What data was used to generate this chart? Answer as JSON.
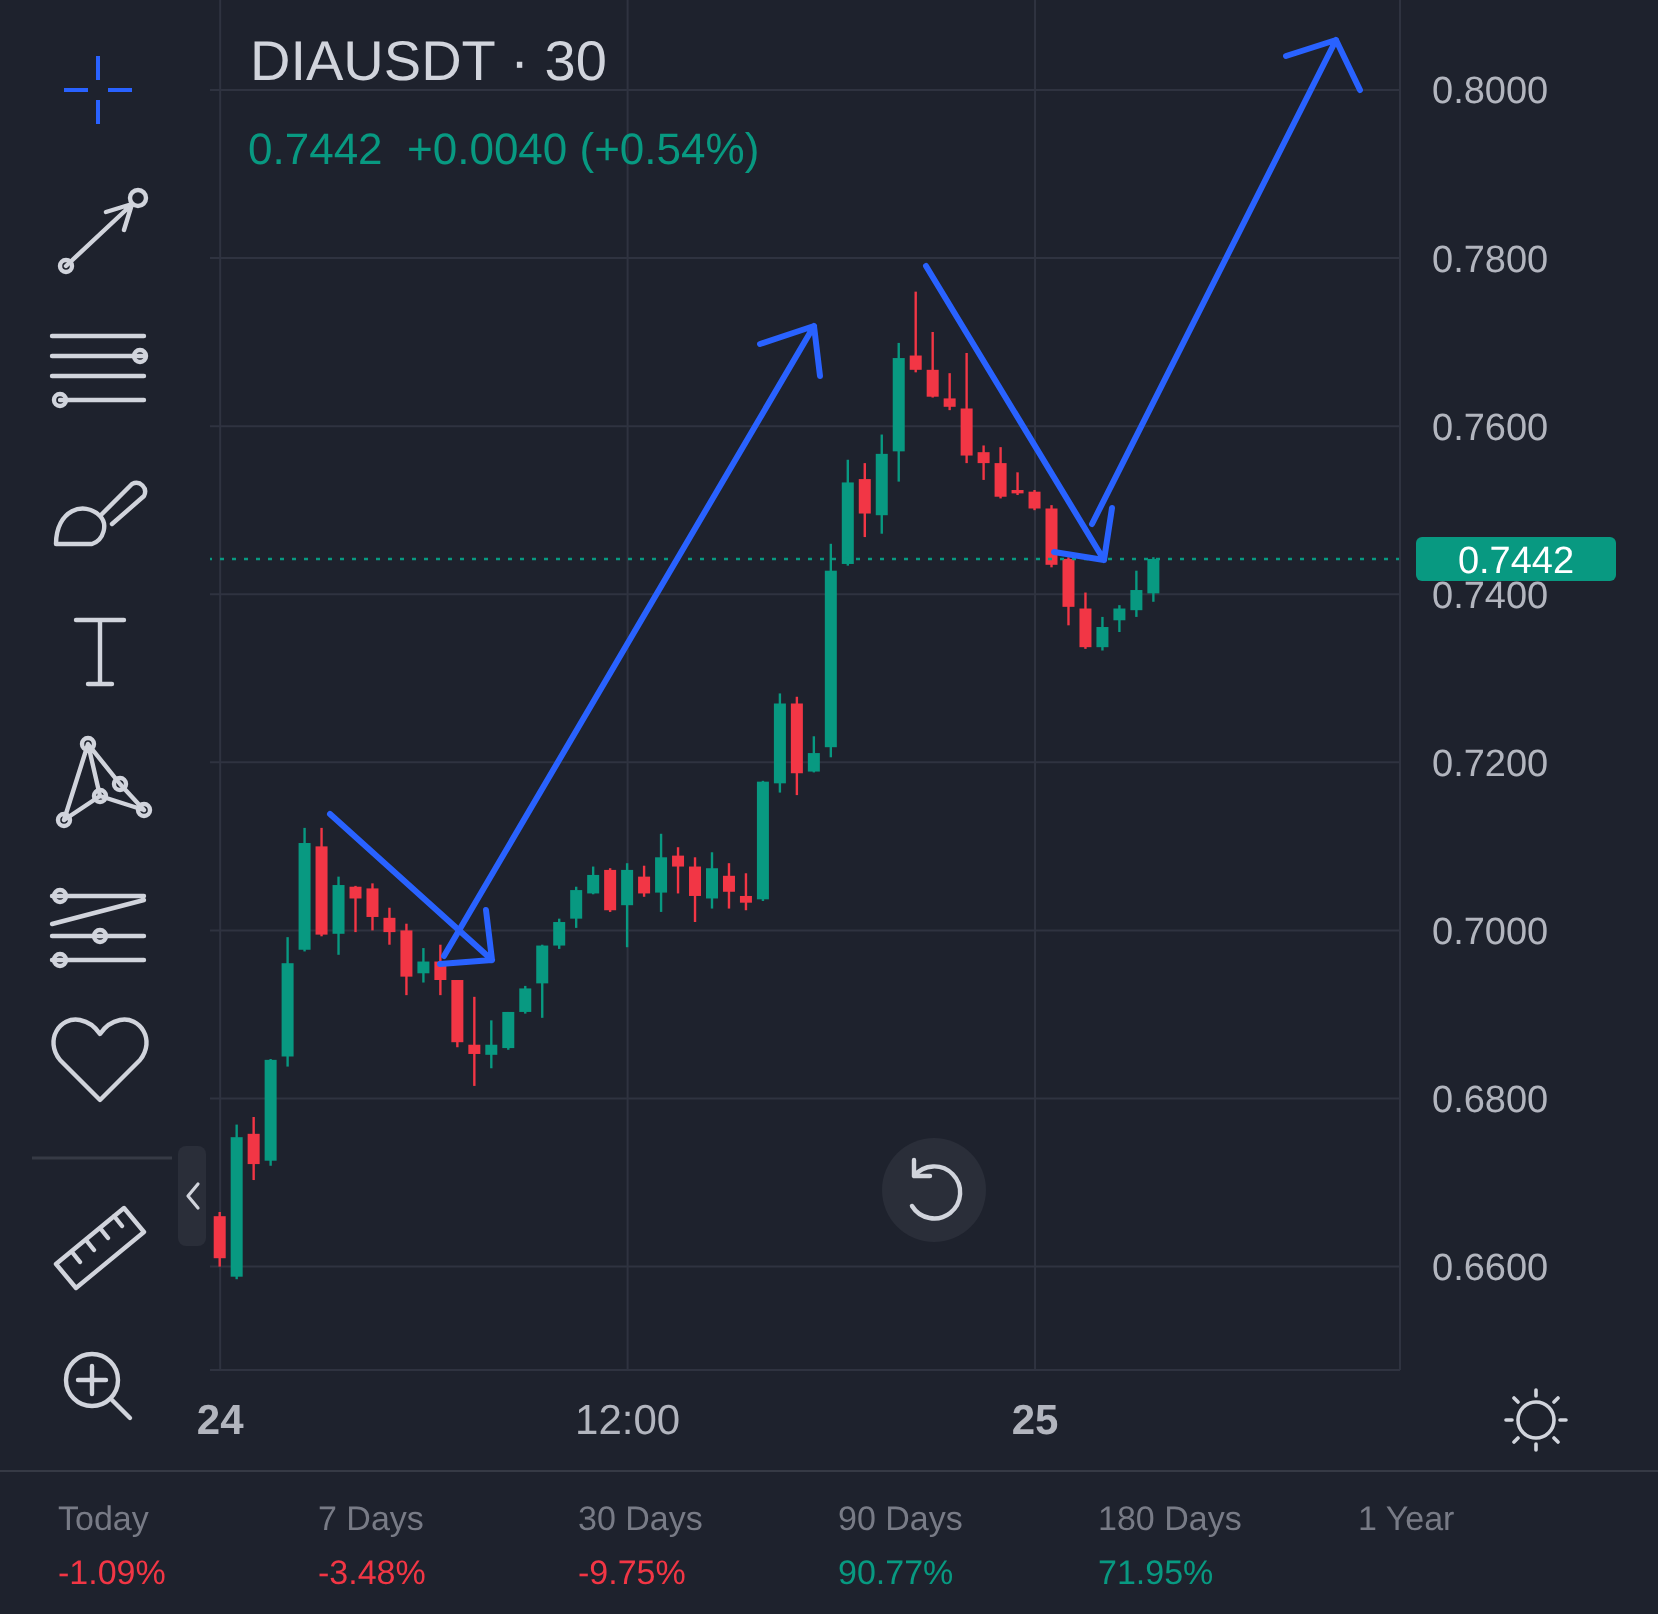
{
  "chart_data": {
    "type": "candlestick",
    "title": "DIAUSDT · 30",
    "subtitle": "0.7442  +0.0040 (+0.54%)",
    "categories": [
      "24",
      null,
      null,
      null,
      null,
      null,
      null,
      null,
      null,
      null,
      null,
      null,
      null,
      null,
      null,
      null,
      null,
      null,
      null,
      null,
      null,
      null,
      null,
      null,
      "12:00",
      null,
      null,
      null,
      null,
      null,
      null,
      null,
      null,
      null,
      null,
      null,
      null,
      null,
      null,
      null,
      null,
      null,
      null,
      null,
      null,
      null,
      null,
      null,
      "25",
      null,
      null,
      null,
      null,
      null,
      null,
      null,
      null,
      null,
      null,
      null,
      null,
      null,
      null,
      null,
      null,
      null,
      null,
      null,
      null,
      null
    ],
    "ohlc": [
      [
        0.666,
        0.6665,
        0.66,
        0.661
      ],
      [
        0.6588,
        0.6769,
        0.6585,
        0.6754
      ],
      [
        0.6758,
        0.6778,
        0.6703,
        0.6722
      ],
      [
        0.6726,
        0.6847,
        0.672,
        0.6846
      ],
      [
        0.685,
        0.6992,
        0.6838,
        0.6961
      ],
      [
        0.6977,
        0.7122,
        0.6975,
        0.7104
      ],
      [
        0.71,
        0.7122,
        0.6993,
        0.6995
      ],
      [
        0.6996,
        0.7064,
        0.6971,
        0.7054
      ],
      [
        0.7052,
        0.7053,
        0.6998,
        0.7038
      ],
      [
        0.705,
        0.7056,
        0.7,
        0.7016
      ],
      [
        0.7015,
        0.7027,
        0.6983,
        0.6998
      ],
      [
        0.7,
        0.7008,
        0.6923,
        0.6945
      ],
      [
        0.6949,
        0.6979,
        0.6938,
        0.6963
      ],
      [
        0.6963,
        0.6983,
        0.6923,
        0.6941
      ],
      [
        0.6941,
        0.6941,
        0.6861,
        0.6867
      ],
      [
        0.6864,
        0.6921,
        0.6815,
        0.6853
      ],
      [
        0.6852,
        0.6893,
        0.6836,
        0.6864
      ],
      [
        0.686,
        0.6903,
        0.6858,
        0.6903
      ],
      [
        0.6903,
        0.6934,
        0.6901,
        0.6931
      ],
      [
        0.6937,
        0.6983,
        0.6896,
        0.6982
      ],
      [
        0.6982,
        0.7014,
        0.6978,
        0.701
      ],
      [
        0.7014,
        0.7052,
        0.7003,
        0.7048
      ],
      [
        0.7044,
        0.7076,
        0.7043,
        0.7066
      ],
      [
        0.7072,
        0.7074,
        0.7022,
        0.7024
      ],
      [
        0.703,
        0.708,
        0.698,
        0.7072
      ],
      [
        0.7064,
        0.7077,
        0.704,
        0.7044
      ],
      [
        0.7045,
        0.7115,
        0.7022,
        0.7087
      ],
      [
        0.7089,
        0.7099,
        0.7044,
        0.7076
      ],
      [
        0.7076,
        0.7087,
        0.701,
        0.7041
      ],
      [
        0.7038,
        0.7093,
        0.7026,
        0.7074
      ],
      [
        0.7065,
        0.708,
        0.7026,
        0.7046
      ],
      [
        0.7041,
        0.7068,
        0.7024,
        0.7033
      ],
      [
        0.7037,
        0.7178,
        0.7035,
        0.7177
      ],
      [
        0.7175,
        0.7282,
        0.7164,
        0.727
      ],
      [
        0.727,
        0.7278,
        0.7161,
        0.7187
      ],
      [
        0.7189,
        0.7231,
        0.7188,
        0.7211
      ],
      [
        0.7218,
        0.746,
        0.7206,
        0.7428
      ],
      [
        0.7436,
        0.756,
        0.7434,
        0.7533
      ],
      [
        0.7537,
        0.7556,
        0.7468,
        0.7496
      ],
      [
        0.7494,
        0.759,
        0.7472,
        0.7567
      ],
      [
        0.757,
        0.7699,
        0.7534,
        0.7681
      ],
      [
        0.7684,
        0.776,
        0.7664,
        0.7667
      ],
      [
        0.7667,
        0.7712,
        0.7634,
        0.7635
      ],
      [
        0.7633,
        0.7663,
        0.7619,
        0.7623
      ],
      [
        0.7621,
        0.7687,
        0.7556,
        0.7565
      ],
      [
        0.7569,
        0.7577,
        0.7536,
        0.7556
      ],
      [
        0.7556,
        0.7575,
        0.7514,
        0.7516
      ],
      [
        0.7524,
        0.7545,
        0.7518,
        0.752
      ],
      [
        0.7522,
        0.7524,
        0.75,
        0.7502
      ],
      [
        0.7502,
        0.7506,
        0.7432,
        0.7435
      ],
      [
        0.7442,
        0.7444,
        0.7363,
        0.7385
      ],
      [
        0.7383,
        0.7402,
        0.7335,
        0.7337
      ],
      [
        0.7337,
        0.7373,
        0.7333,
        0.7361
      ],
      [
        0.7369,
        0.7387,
        0.7355,
        0.7383
      ],
      [
        0.7381,
        0.7428,
        0.7373,
        0.7405
      ],
      [
        0.7401,
        0.7444,
        0.7391,
        0.7442
      ],
      null,
      null,
      null,
      null,
      null,
      null,
      null,
      null,
      null,
      null,
      null,
      null,
      null,
      null
    ],
    "colors": [
      "#f23645",
      "#089981",
      "#f23645",
      "#089981",
      "#089981",
      "#089981",
      "#f23645",
      "#089981",
      "#f23645",
      "#f23645",
      "#f23645",
      "#f23645",
      "#089981",
      "#f23645",
      "#f23645",
      "#f23645",
      "#089981",
      "#089981",
      "#089981",
      "#089981",
      "#089981",
      "#089981",
      "#089981",
      "#f23645",
      "#089981",
      "#f23645",
      "#089981",
      "#f23645",
      "#f23645",
      "#089981",
      "#f23645",
      "#f23645",
      "#089981",
      "#089981",
      "#f23645",
      "#089981",
      "#089981",
      "#089981",
      "#f23645",
      "#089981",
      "#089981",
      "#f23645",
      "#f23645",
      "#f23645",
      "#f23645",
      "#f23645",
      "#f23645",
      "#f23645",
      "#f23645",
      "#f23645",
      "#f23645",
      "#f23645",
      "#089981",
      "#089981",
      "#089981",
      "#089981",
      null,
      null,
      null,
      null,
      null,
      null,
      null,
      null,
      null,
      null,
      null,
      null,
      null,
      null
    ],
    "ylim": [
      0.6477,
      0.8107
    ],
    "yticks": [
      {
        "value": 0.66,
        "label": "0.6600"
      },
      {
        "value": 0.68,
        "label": "0.6800"
      },
      {
        "value": 0.7,
        "label": "0.7000"
      },
      {
        "value": 0.72,
        "label": "0.7200"
      },
      {
        "value": 0.74,
        "label": "0.7400"
      },
      {
        "value": 0.76,
        "label": "0.7600"
      },
      {
        "value": 0.78,
        "label": "0.7800"
      },
      {
        "value": 0.8,
        "label": "0.8000"
      }
    ],
    "grid": true,
    "ref_lines": [
      {
        "axis": "y",
        "value": 0.7442,
        "label": "0.7442",
        "color": "#089981",
        "line_style": "dotted"
      }
    ],
    "annotations": [
      "Today",
      "-1.09%",
      "7 Days",
      "-3.48%",
      "30 Days",
      "-9.75%",
      "90 Days",
      "90.77%",
      "180 Days",
      "71.95%",
      "1 Year"
    ]
  }
}
